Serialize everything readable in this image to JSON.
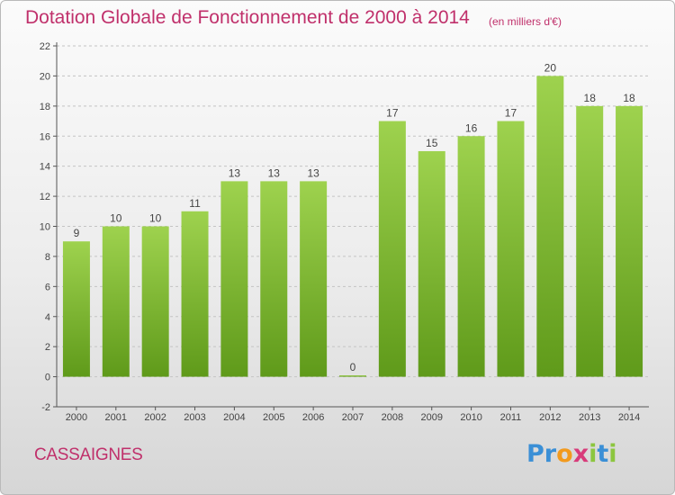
{
  "chart_data": {
    "type": "bar",
    "title": "Dotation Globale de Fonctionnement de 2000 à 2014",
    "unit": "(en milliers d'€)",
    "categories": [
      "2000",
      "2001",
      "2002",
      "2003",
      "2004",
      "2005",
      "2006",
      "2007",
      "2008",
      "2009",
      "2010",
      "2011",
      "2012",
      "2013",
      "2014"
    ],
    "values": [
      9,
      10,
      10,
      11,
      13,
      13,
      13,
      0,
      17,
      15,
      16,
      17,
      20,
      18,
      18
    ],
    "ylim": [
      -2,
      22
    ],
    "yticks": [
      -2,
      0,
      2,
      4,
      6,
      8,
      10,
      12,
      14,
      16,
      18,
      20,
      22
    ],
    "grid": true,
    "colors": {
      "bar_top": "#9ed24e",
      "bar_bottom": "#5f9a1a",
      "title": "#c0306b"
    }
  },
  "footer": {
    "commune": "CASSAIGNES",
    "logo_letters": [
      "P",
      "r",
      "o",
      "x",
      "i",
      "t",
      "i"
    ],
    "logo_colors": [
      "#3a8fd6",
      "#3a8fd6",
      "#f29a1e",
      "#d83b7a",
      "#8cc63f",
      "#3a8fd6",
      "#8cc63f"
    ]
  }
}
